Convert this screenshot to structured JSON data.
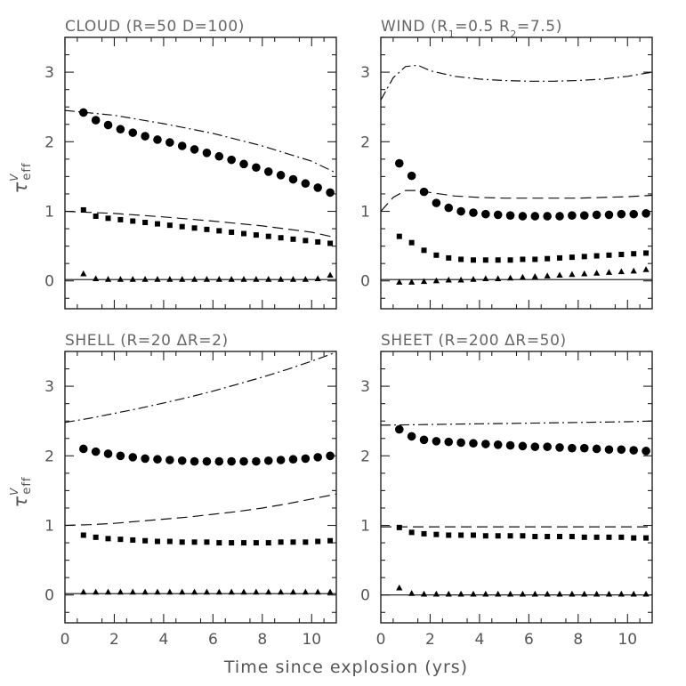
{
  "chart_data": {
    "type": "scatter",
    "layout": "2x2 panels",
    "xlabel": "Time since explosion (yrs)",
    "ylabel": "τ eff V",
    "xlim": [
      0,
      11
    ],
    "ylim": [
      -0.4,
      3.5
    ],
    "xticks": [
      0,
      2,
      4,
      6,
      8,
      10
    ],
    "yticks": [
      0,
      1,
      2,
      3
    ],
    "grid": false,
    "legend": "none",
    "panels": [
      {
        "id": "cloud",
        "title": "CLOUD (R=50 D=100)",
        "title_parts": [
          "CLOUD (R=50 D=100)"
        ],
        "show_xticklabels": false,
        "series": [
          {
            "marker": "line-solid",
            "x": [
              0,
              11
            ],
            "y": [
              0.02,
              0.02
            ]
          },
          {
            "marker": "line-dashed",
            "x": [
              0,
              2,
              4,
              6,
              8,
              10,
              11
            ],
            "y": [
              1.0,
              0.97,
              0.92,
              0.86,
              0.79,
              0.7,
              0.62
            ]
          },
          {
            "marker": "line-dashdot",
            "x": [
              0,
              2,
              4,
              6,
              8,
              10,
              11
            ],
            "y": [
              2.45,
              2.38,
              2.26,
              2.12,
              1.94,
              1.72,
              1.55
            ]
          },
          {
            "marker": "circle-large",
            "x": [
              0.75,
              1.25,
              1.75,
              2.25,
              2.75,
              3.25,
              3.75,
              4.25,
              4.75,
              5.25,
              5.75,
              6.25,
              6.75,
              7.25,
              7.75,
              8.25,
              8.75,
              9.25,
              9.75,
              10.25,
              10.75
            ],
            "y": [
              2.42,
              2.31,
              2.24,
              2.18,
              2.13,
              2.08,
              2.03,
              1.99,
              1.94,
              1.89,
              1.84,
              1.79,
              1.74,
              1.68,
              1.63,
              1.57,
              1.52,
              1.46,
              1.4,
              1.34,
              1.27
            ]
          },
          {
            "marker": "square-small",
            "x": [
              0.75,
              1.25,
              1.75,
              2.25,
              2.75,
              3.25,
              3.75,
              4.25,
              4.75,
              5.25,
              5.75,
              6.25,
              6.75,
              7.25,
              7.75,
              8.25,
              8.75,
              9.25,
              9.75,
              10.25,
              10.75
            ],
            "y": [
              1.02,
              0.93,
              0.9,
              0.88,
              0.86,
              0.84,
              0.82,
              0.8,
              0.78,
              0.76,
              0.74,
              0.72,
              0.7,
              0.68,
              0.66,
              0.64,
              0.62,
              0.6,
              0.58,
              0.56,
              0.54
            ]
          },
          {
            "marker": "triangle-small",
            "x": [
              0.75,
              1.25,
              1.75,
              2.25,
              2.75,
              3.25,
              3.75,
              4.25,
              4.75,
              5.25,
              5.75,
              6.25,
              6.75,
              7.25,
              7.75,
              8.25,
              8.75,
              9.25,
              9.75,
              10.25,
              10.75
            ],
            "y": [
              0.1,
              0.03,
              0.02,
              0.02,
              0.02,
              0.02,
              0.02,
              0.02,
              0.02,
              0.02,
              0.02,
              0.02,
              0.02,
              0.02,
              0.02,
              0.02,
              0.02,
              0.02,
              0.02,
              0.03,
              0.08
            ]
          }
        ]
      },
      {
        "id": "wind",
        "title": "WIND (R1=0.5 R2=7.5)",
        "title_parts": [
          "WIND (R",
          "1",
          "=0.5 R",
          "2",
          "=7.5)"
        ],
        "show_xticklabels": false,
        "series": [
          {
            "marker": "line-solid",
            "x": [
              0,
              11
            ],
            "y": [
              0.02,
              0.02
            ]
          },
          {
            "marker": "line-dashed",
            "x": [
              0,
              0.5,
              1,
              1.5,
              2,
              3,
              4,
              5,
              6,
              7,
              8,
              9,
              10,
              11
            ],
            "y": [
              1.0,
              1.2,
              1.3,
              1.3,
              1.27,
              1.22,
              1.2,
              1.19,
              1.19,
              1.19,
              1.19,
              1.2,
              1.21,
              1.23
            ]
          },
          {
            "marker": "line-dashdot",
            "x": [
              0,
              0.5,
              1,
              1.5,
              2,
              3,
              4,
              5,
              6,
              7,
              8,
              9,
              10,
              11
            ],
            "y": [
              2.6,
              2.92,
              3.08,
              3.1,
              3.02,
              2.94,
              2.9,
              2.88,
              2.87,
              2.87,
              2.88,
              2.9,
              2.94,
              3.0
            ]
          },
          {
            "marker": "circle-large",
            "x": [
              0.75,
              1.25,
              1.75,
              2.25,
              2.75,
              3.25,
              3.75,
              4.25,
              4.75,
              5.25,
              5.75,
              6.25,
              6.75,
              7.25,
              7.75,
              8.25,
              8.75,
              9.25,
              9.75,
              10.25,
              10.75
            ],
            "y": [
              1.69,
              1.51,
              1.28,
              1.12,
              1.05,
              1.0,
              0.98,
              0.96,
              0.95,
              0.94,
              0.93,
              0.93,
              0.93,
              0.93,
              0.94,
              0.94,
              0.95,
              0.95,
              0.96,
              0.96,
              0.97
            ]
          },
          {
            "marker": "square-small",
            "x": [
              0.75,
              1.25,
              1.75,
              2.25,
              2.75,
              3.25,
              3.75,
              4.25,
              4.75,
              5.25,
              5.75,
              6.25,
              6.75,
              7.25,
              7.75,
              8.25,
              8.75,
              9.25,
              9.75,
              10.25,
              10.75
            ],
            "y": [
              0.64,
              0.55,
              0.44,
              0.37,
              0.33,
              0.31,
              0.3,
              0.3,
              0.3,
              0.3,
              0.31,
              0.31,
              0.32,
              0.33,
              0.34,
              0.35,
              0.36,
              0.37,
              0.38,
              0.39,
              0.4
            ]
          },
          {
            "marker": "triangle-small",
            "x": [
              0.75,
              1.25,
              1.75,
              2.25,
              2.75,
              3.25,
              3.75,
              4.25,
              4.75,
              5.25,
              5.75,
              6.25,
              6.75,
              7.25,
              7.75,
              8.25,
              8.75,
              9.25,
              9.75,
              10.25,
              10.75
            ],
            "y": [
              -0.02,
              -0.02,
              -0.01,
              0.0,
              0.01,
              0.01,
              0.02,
              0.03,
              0.03,
              0.04,
              0.05,
              0.06,
              0.07,
              0.08,
              0.09,
              0.1,
              0.11,
              0.12,
              0.13,
              0.14,
              0.16
            ]
          }
        ]
      },
      {
        "id": "shell",
        "title": "SHELL (R=20 ΔR=2)",
        "title_parts": [
          "SHELL (R=20 ΔR=2)"
        ],
        "show_xticklabels": true,
        "series": [
          {
            "marker": "line-solid",
            "x": [
              0,
              11
            ],
            "y": [
              0.02,
              0.02
            ]
          },
          {
            "marker": "line-dashed",
            "x": [
              0,
              1,
              2,
              3,
              4,
              5,
              6,
              7,
              8,
              9,
              10,
              11
            ],
            "y": [
              1.0,
              1.01,
              1.03,
              1.06,
              1.09,
              1.12,
              1.16,
              1.2,
              1.25,
              1.31,
              1.38,
              1.45
            ]
          },
          {
            "marker": "line-dashdot",
            "x": [
              0,
              1,
              2,
              3,
              4,
              5,
              6,
              7,
              8,
              9,
              10,
              11
            ],
            "y": [
              2.48,
              2.54,
              2.61,
              2.68,
              2.76,
              2.84,
              2.93,
              3.03,
              3.13,
              3.24,
              3.36,
              3.49
            ]
          },
          {
            "marker": "circle-large",
            "x": [
              0.75,
              1.25,
              1.75,
              2.25,
              2.75,
              3.25,
              3.75,
              4.25,
              4.75,
              5.25,
              5.75,
              6.25,
              6.75,
              7.25,
              7.75,
              8.25,
              8.75,
              9.25,
              9.75,
              10.25,
              10.75
            ],
            "y": [
              2.1,
              2.06,
              2.03,
              2.0,
              1.98,
              1.96,
              1.95,
              1.94,
              1.93,
              1.92,
              1.92,
              1.92,
              1.92,
              1.92,
              1.92,
              1.93,
              1.94,
              1.95,
              1.96,
              1.98,
              2.0
            ]
          },
          {
            "marker": "square-small",
            "x": [
              0.75,
              1.25,
              1.75,
              2.25,
              2.75,
              3.25,
              3.75,
              4.25,
              4.75,
              5.25,
              5.75,
              6.25,
              6.75,
              7.25,
              7.75,
              8.25,
              8.75,
              9.25,
              9.75,
              10.25,
              10.75
            ],
            "y": [
              0.86,
              0.83,
              0.81,
              0.8,
              0.79,
              0.78,
              0.77,
              0.77,
              0.76,
              0.76,
              0.76,
              0.75,
              0.75,
              0.75,
              0.75,
              0.75,
              0.76,
              0.76,
              0.76,
              0.77,
              0.78
            ]
          },
          {
            "marker": "triangle-small",
            "x": [
              0.75,
              1.25,
              1.75,
              2.25,
              2.75,
              3.25,
              3.75,
              4.25,
              4.75,
              5.25,
              5.75,
              6.25,
              6.75,
              7.25,
              7.75,
              8.25,
              8.75,
              9.25,
              9.75,
              10.25,
              10.75
            ],
            "y": [
              0.04,
              0.04,
              0.04,
              0.04,
              0.04,
              0.04,
              0.04,
              0.04,
              0.04,
              0.04,
              0.04,
              0.04,
              0.04,
              0.04,
              0.04,
              0.04,
              0.04,
              0.04,
              0.04,
              0.04,
              0.04
            ]
          }
        ]
      },
      {
        "id": "sheet",
        "title": "SHEET (R=200 ΔR=50)",
        "title_parts": [
          "SHEET (R=200 ΔR=50)"
        ],
        "show_xticklabels": true,
        "series": [
          {
            "marker": "line-solid",
            "x": [
              0,
              11
            ],
            "y": [
              0.0,
              0.0
            ]
          },
          {
            "marker": "line-dashed",
            "x": [
              0,
              2,
              4,
              6,
              8,
              10,
              11
            ],
            "y": [
              0.98,
              0.98,
              0.98,
              0.98,
              0.98,
              0.98,
              0.98
            ]
          },
          {
            "marker": "line-dashdot",
            "x": [
              0,
              2,
              4,
              6,
              8,
              10,
              11
            ],
            "y": [
              2.44,
              2.45,
              2.46,
              2.47,
              2.48,
              2.49,
              2.5
            ]
          },
          {
            "marker": "circle-large",
            "x": [
              0.75,
              1.25,
              1.75,
              2.25,
              2.75,
              3.25,
              3.75,
              4.25,
              4.75,
              5.25,
              5.75,
              6.25,
              6.75,
              7.25,
              7.75,
              8.25,
              8.75,
              9.25,
              9.75,
              10.25,
              10.75
            ],
            "y": [
              2.38,
              2.28,
              2.23,
              2.21,
              2.2,
              2.19,
              2.18,
              2.17,
              2.16,
              2.15,
              2.14,
              2.13,
              2.13,
              2.12,
              2.11,
              2.11,
              2.1,
              2.09,
              2.09,
              2.08,
              2.07
            ]
          },
          {
            "marker": "square-small",
            "x": [
              0.75,
              1.25,
              1.75,
              2.25,
              2.75,
              3.25,
              3.75,
              4.25,
              4.75,
              5.25,
              5.75,
              6.25,
              6.75,
              7.25,
              7.75,
              8.25,
              8.75,
              9.25,
              9.75,
              10.25,
              10.75
            ],
            "y": [
              0.97,
              0.9,
              0.88,
              0.87,
              0.86,
              0.86,
              0.86,
              0.85,
              0.85,
              0.85,
              0.85,
              0.84,
              0.84,
              0.84,
              0.84,
              0.83,
              0.83,
              0.83,
              0.83,
              0.82,
              0.82
            ]
          },
          {
            "marker": "triangle-small",
            "x": [
              0.75,
              1.25,
              1.75,
              2.25,
              2.75,
              3.25,
              3.75,
              4.25,
              4.75,
              5.25,
              5.75,
              6.25,
              6.75,
              7.25,
              7.75,
              8.25,
              8.75,
              9.25,
              9.75,
              10.25,
              10.75
            ],
            "y": [
              0.1,
              0.02,
              0.01,
              0.01,
              0.01,
              0.01,
              0.01,
              0.01,
              0.01,
              0.01,
              0.01,
              0.01,
              0.01,
              0.01,
              0.01,
              0.01,
              0.01,
              0.01,
              0.01,
              0.01,
              0.01
            ]
          }
        ]
      }
    ]
  }
}
